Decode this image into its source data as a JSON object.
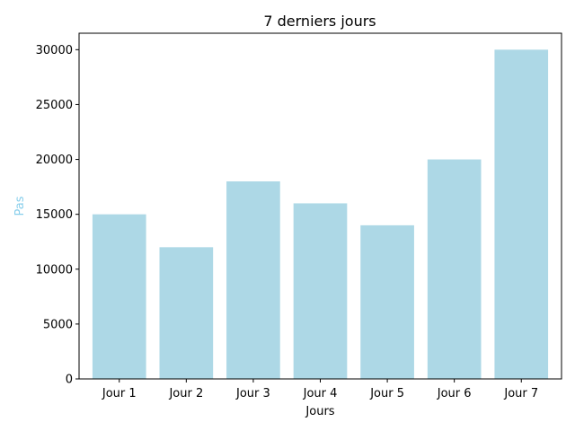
{
  "chart_data": {
    "type": "bar",
    "title": "7 derniers jours",
    "xlabel": "Jours",
    "ylabel": "Pas",
    "categories": [
      "Jour 1",
      "Jour 2",
      "Jour 3",
      "Jour 4",
      "Jour 5",
      "Jour 6",
      "Jour 7"
    ],
    "values": [
      15000,
      12000,
      18000,
      16000,
      14000,
      20000,
      30000
    ],
    "ylim": [
      0,
      31500
    ],
    "yticks": [
      0,
      5000,
      10000,
      15000,
      20000,
      25000,
      30000
    ],
    "grid": false,
    "legend": "none",
    "colors": {
      "bar": "#add8e6",
      "ylabel": "#87ceeb",
      "xlabel": "#000000",
      "axis": "#000000"
    }
  }
}
